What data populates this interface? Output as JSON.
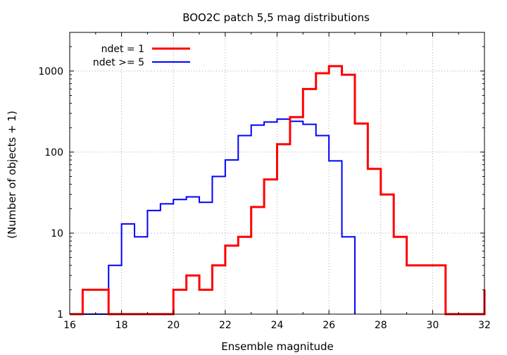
{
  "chart_data": {
    "type": "line",
    "title": "BOO2C patch 5,5 mag distributions",
    "xlabel": "Ensemble magnitude",
    "ylabel": "(Number of objects + 1)",
    "xlim": [
      16,
      32
    ],
    "ylim": [
      1,
      3000
    ],
    "y_scale": "log",
    "grid": true,
    "legend_position": "top-left",
    "x_ticks": [
      "16",
      "18",
      "20",
      "22",
      "24",
      "26",
      "28",
      "30",
      "32"
    ],
    "y_ticks": [
      "1",
      "10",
      "100",
      "1000"
    ],
    "series": [
      {
        "name": "ndet = 1",
        "color": "#ff0000",
        "style": "step",
        "bin_width": 0.5,
        "bin_starts": [
          16.0,
          16.5,
          17.0,
          17.5,
          18.0,
          18.5,
          19.0,
          19.5,
          20.0,
          20.5,
          21.0,
          21.5,
          22.0,
          22.5,
          23.0,
          23.5,
          24.0,
          24.5,
          25.0,
          25.5,
          26.0,
          26.5,
          27.0,
          27.5,
          28.0,
          28.5,
          29.0,
          29.5,
          30.0,
          30.5,
          31.0,
          31.5
        ],
        "values": [
          1,
          2,
          2,
          1,
          1,
          1,
          1,
          1,
          2,
          3,
          2,
          4,
          7,
          9,
          21,
          46,
          125,
          270,
          600,
          940,
          1150,
          900,
          225,
          62,
          30,
          9,
          4,
          4,
          4,
          1,
          1,
          1
        ]
      },
      {
        "name": "ndet >= 5",
        "color": "#0000ff",
        "style": "step",
        "bin_width": 0.5,
        "bin_starts": [
          16.0,
          16.5,
          17.0,
          17.5,
          18.0,
          18.5,
          19.0,
          19.5,
          20.0,
          20.5,
          21.0,
          21.5,
          22.0,
          22.5,
          23.0,
          23.5,
          24.0,
          24.5,
          25.0,
          25.5,
          26.0,
          26.5
        ],
        "values": [
          1,
          1,
          1,
          4,
          13,
          9,
          19,
          23,
          26,
          28,
          24,
          50,
          80,
          160,
          215,
          235,
          255,
          240,
          220,
          160,
          78,
          9
        ],
        "end_x": 27.0
      }
    ]
  }
}
